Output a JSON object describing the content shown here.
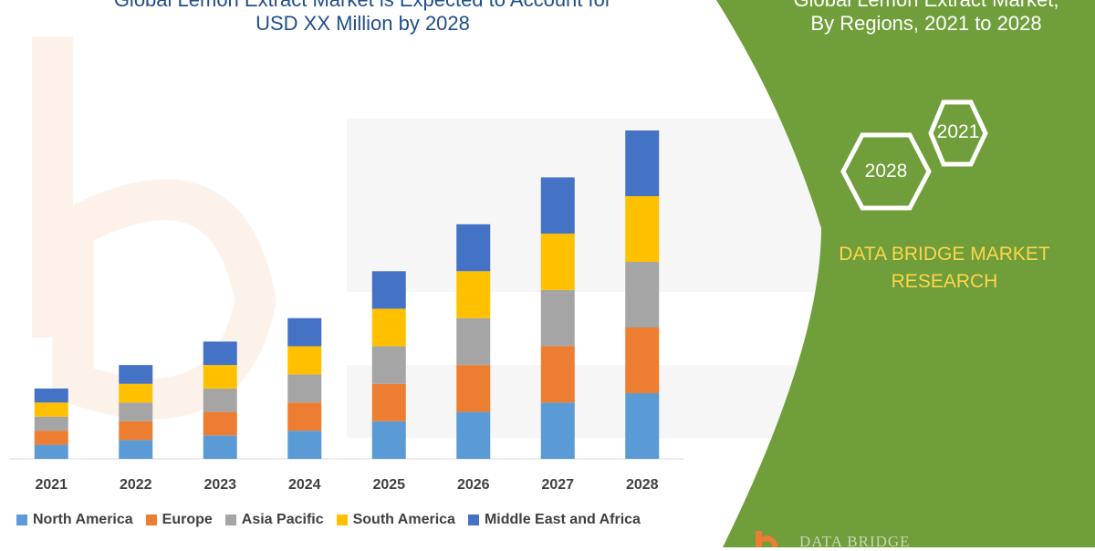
{
  "header": {
    "title_line1": "Global Lemon Extract Market is Expected to Account for",
    "title_line2": "USD XX Million by 2028"
  },
  "side_panel": {
    "title_line1": "Global Lemon Extract Market,",
    "title_line2": "By Regions, 2021 to 2028",
    "hex_left": "2028",
    "hex_right": "2021",
    "brand_line1": "DATA BRIDGE MARKET",
    "brand_line2": "RESEARCH",
    "footer_brand": "DATA BRIDGE"
  },
  "colors": {
    "green_panel": "#6f9e3a",
    "north_america": "#5b9bd5",
    "europe": "#ed7d31",
    "asia_pacific": "#a5a5a5",
    "south_america": "#ffc000",
    "middle_east_africa": "#4472c4",
    "title": "#1f4e8c",
    "brand_text": "#ffd54a"
  },
  "chart_data": {
    "type": "bar",
    "stacked": true,
    "categories": [
      "2021",
      "2022",
      "2023",
      "2024",
      "2025",
      "2026",
      "2027",
      "2028"
    ],
    "series": [
      {
        "name": "North America",
        "color": "#5b9bd5",
        "values": [
          15,
          20,
          25,
          30,
          40,
          50,
          60,
          70
        ]
      },
      {
        "name": "Europe",
        "color": "#ed7d31",
        "values": [
          15,
          20,
          25,
          30,
          40,
          50,
          60,
          70
        ]
      },
      {
        "name": "Asia Pacific",
        "color": "#a5a5a5",
        "values": [
          15,
          20,
          25,
          30,
          40,
          50,
          60,
          70
        ]
      },
      {
        "name": "South America",
        "color": "#ffc000",
        "values": [
          15,
          20,
          25,
          30,
          40,
          50,
          60,
          70
        ]
      },
      {
        "name": "Middle East and Africa",
        "color": "#4472c4",
        "values": [
          15,
          20,
          25,
          30,
          40,
          50,
          60,
          70
        ]
      }
    ],
    "ylim": [
      0,
      350
    ],
    "grid": false,
    "legend": "bottom"
  }
}
